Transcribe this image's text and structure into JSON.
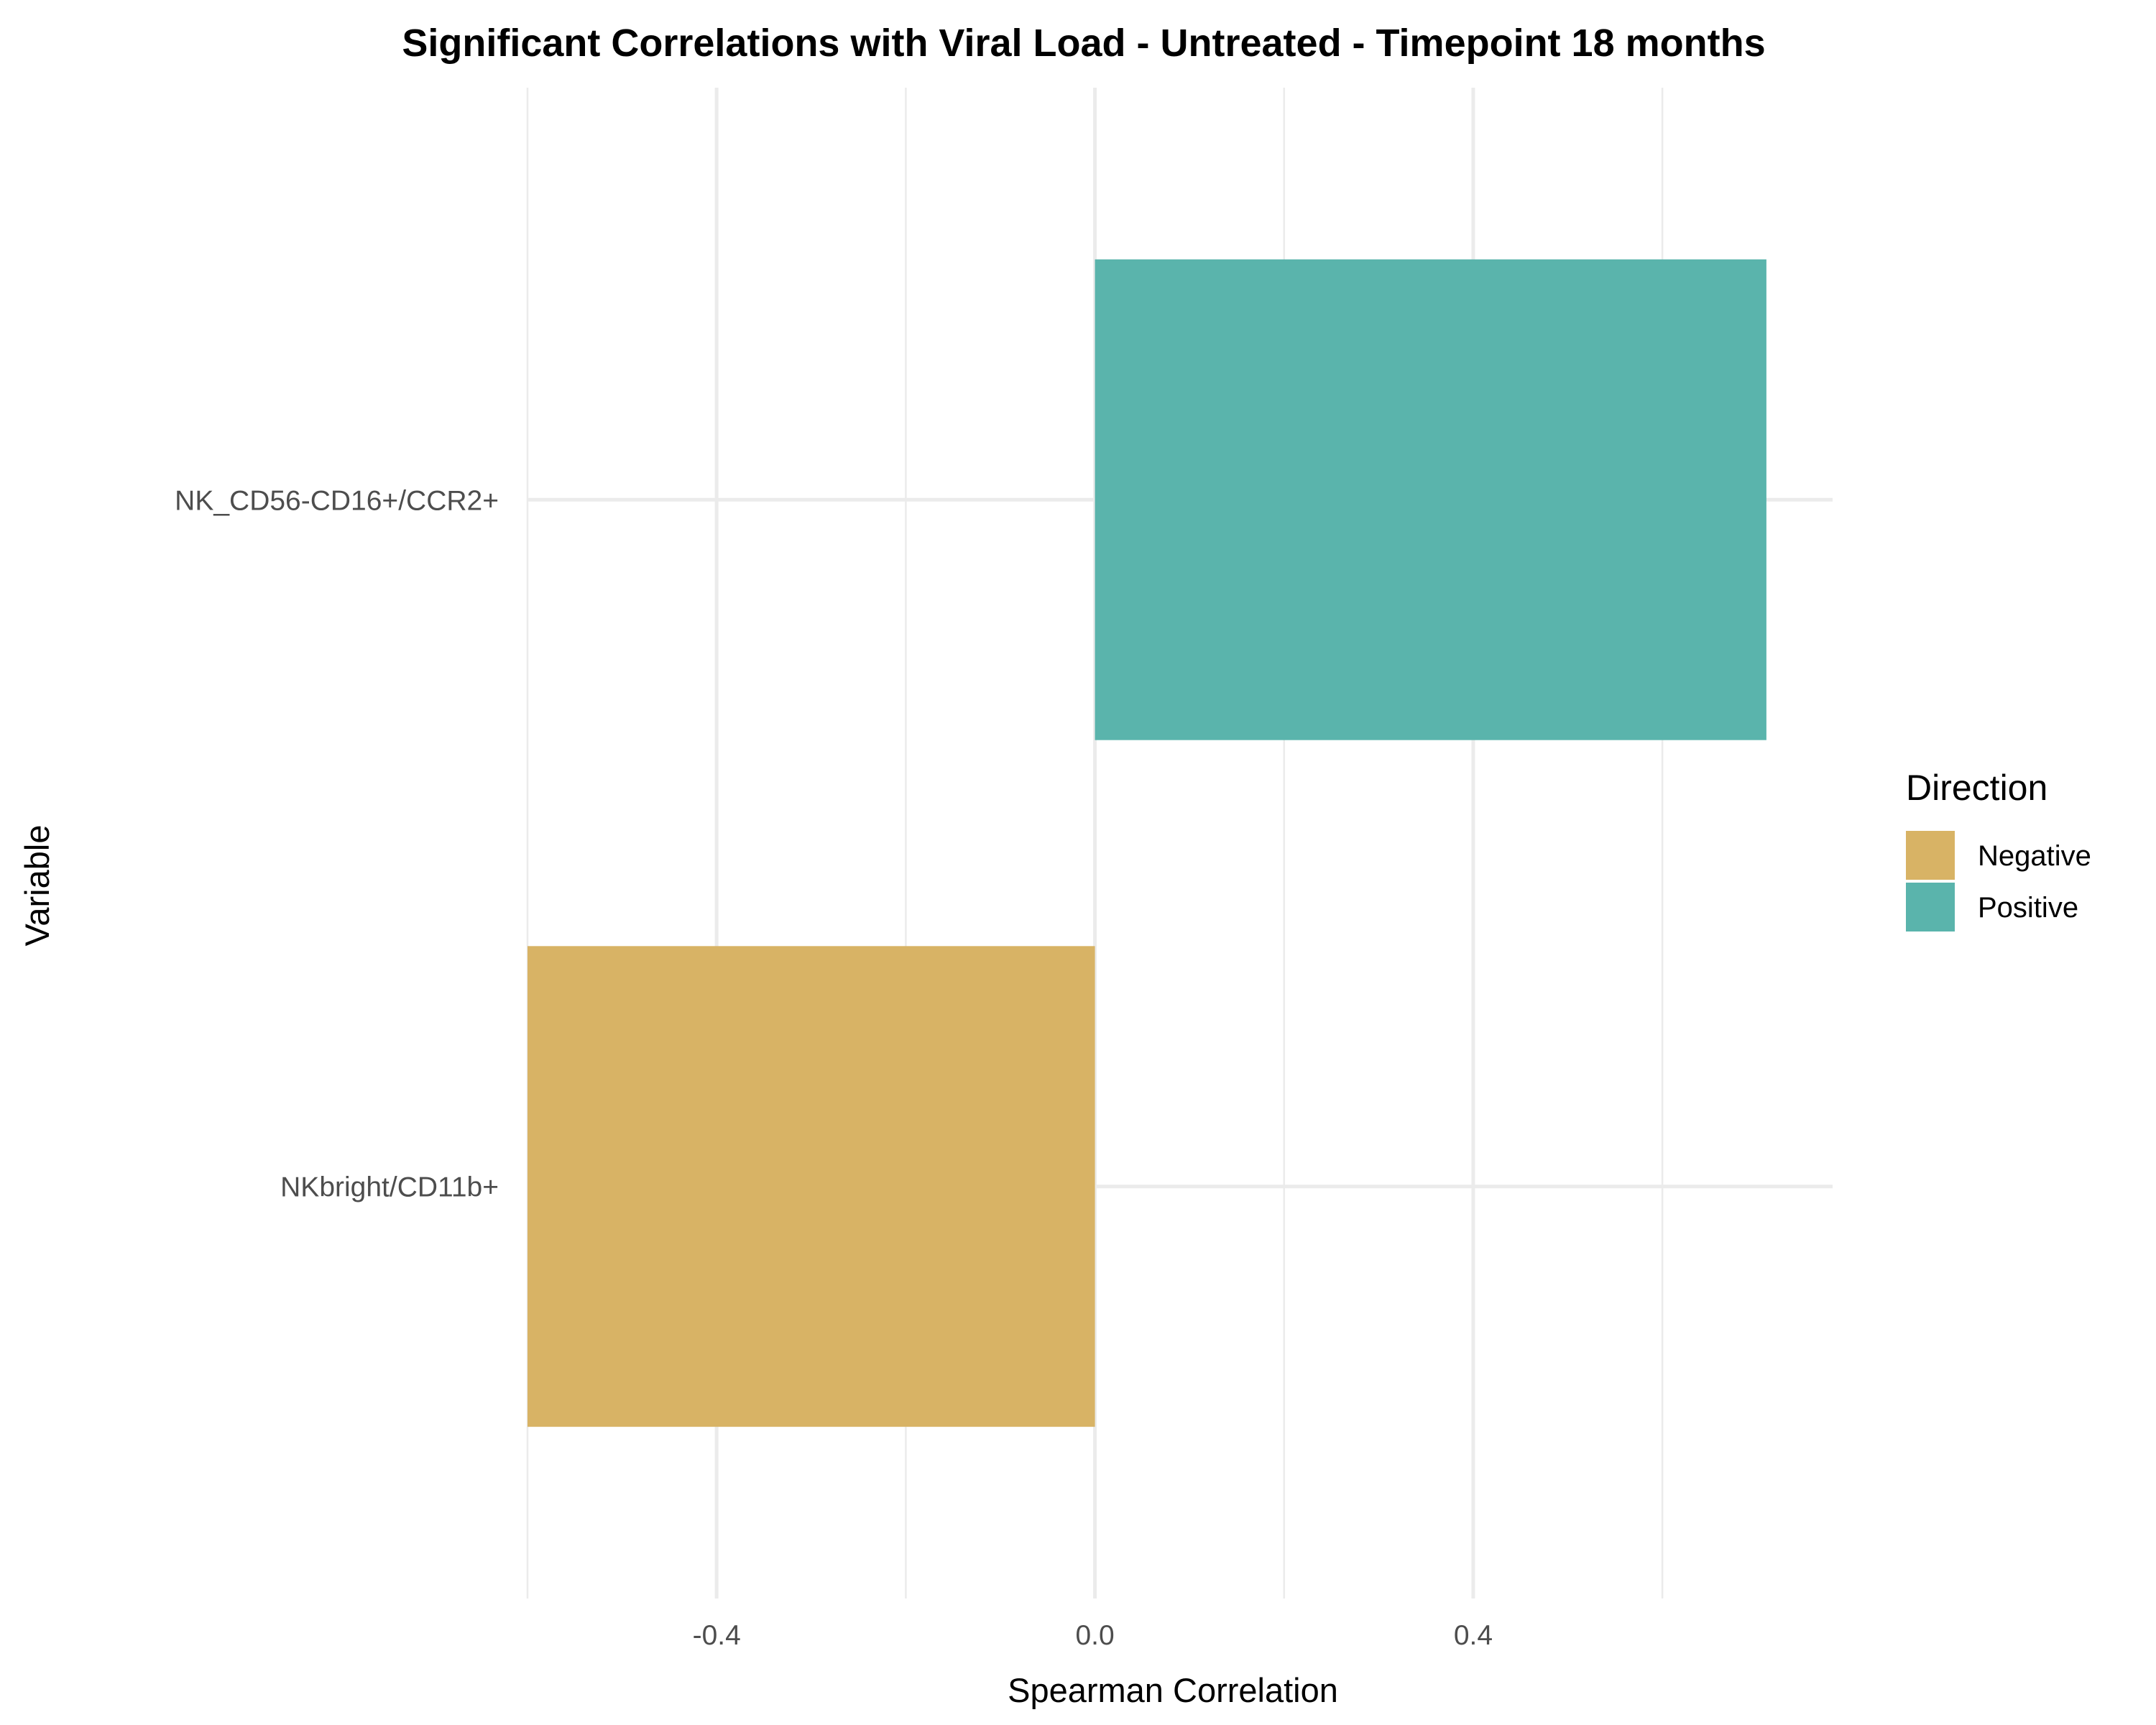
{
  "chart_data": {
    "type": "bar",
    "orientation": "horizontal",
    "title": "Significant Correlations with Viral Load - Untreated - Timepoint 18 months",
    "xlabel": "Spearman Correlation",
    "ylabel": "Variable",
    "xlim": [
      -0.6,
      0.78
    ],
    "x_ticks": [
      -0.4,
      0.0,
      0.4
    ],
    "x_tick_labels": [
      "-0.4",
      "0.0",
      "0.4"
    ],
    "grid": true,
    "categories": [
      "NK_CD56-CD16+/CCR2+",
      "NKbright/CD11b+"
    ],
    "values": [
      0.71,
      -0.6
    ],
    "directions": [
      "Positive",
      "Negative"
    ],
    "legend": {
      "title": "Direction",
      "position": "right",
      "entries": [
        {
          "label": "Negative",
          "color": "#D8B365"
        },
        {
          "label": "Positive",
          "color": "#5AB4AC"
        }
      ]
    }
  }
}
